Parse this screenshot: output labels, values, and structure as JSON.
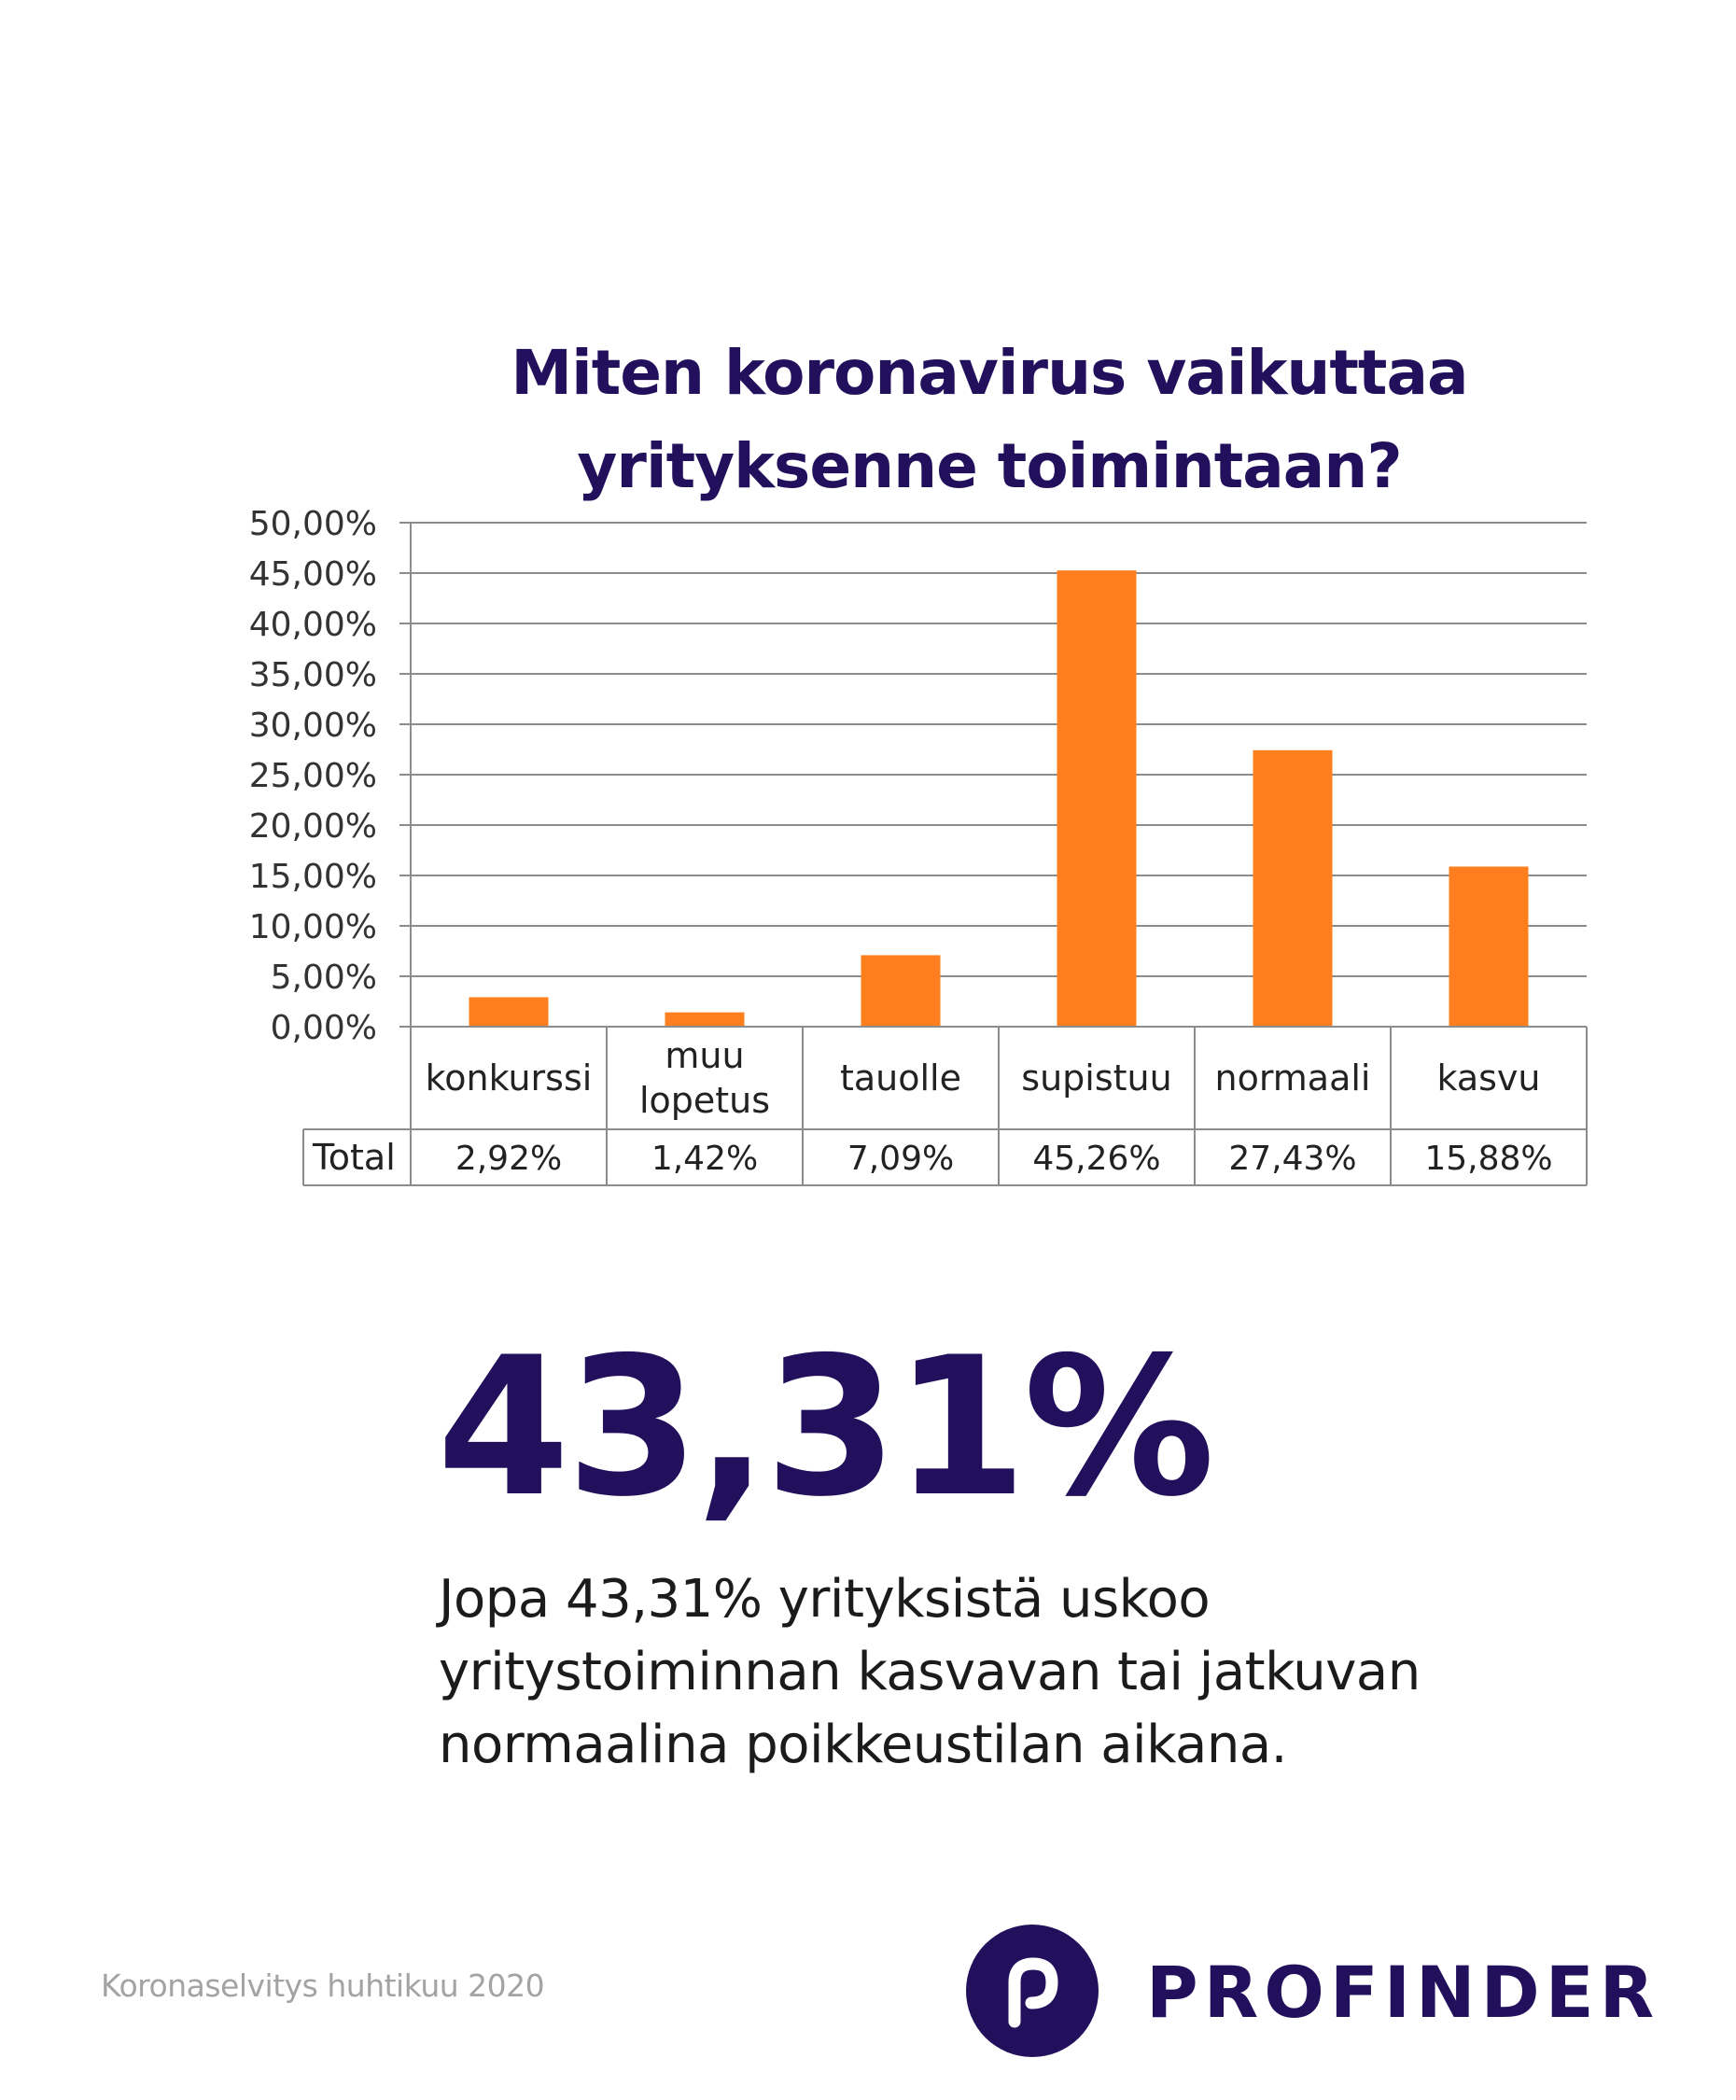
{
  "chart_data": {
    "type": "bar",
    "title_lines": [
      "Miten koronavirus vaikuttaa",
      "yrityksenne toimintaan?"
    ],
    "categories": [
      [
        "konkurssi"
      ],
      [
        "muu",
        "lopetus"
      ],
      [
        "tauolle"
      ],
      [
        "supistuu"
      ],
      [
        "normaali"
      ],
      [
        "kasvu"
      ]
    ],
    "series": [
      {
        "name": "Total",
        "values": [
          2.92,
          1.42,
          7.09,
          45.26,
          27.43,
          15.88
        ],
        "labels": [
          "2,92%",
          "1,42%",
          "7,09%",
          "45,26%",
          "27,43%",
          "15,88%"
        ]
      }
    ],
    "ylim": [
      0,
      50
    ],
    "y_ticks": [
      "0,00%",
      "5,00%",
      "10,00%",
      "15,00%",
      "20,00%",
      "25,00%",
      "30,00%",
      "35,00%",
      "40,00%",
      "45,00%",
      "50,00%"
    ],
    "grid": true,
    "data_table": true,
    "bar_color": "#ff7f1e"
  },
  "highlight": {
    "value": "43,31%",
    "description_lines": [
      "Jopa 43,31% yrityksistä uskoo",
      "yritystoiminnan kasvavan tai jatkuvan",
      "normaalina poikkeustilan aikana."
    ]
  },
  "footer": {
    "note": "Koronaselvitys huhtikuu 2020",
    "brand": "PROFINDER"
  },
  "colors": {
    "brand_purple": "#22105c",
    "accent_orange": "#ff7f1e",
    "gridline": "#8c8c8c"
  }
}
